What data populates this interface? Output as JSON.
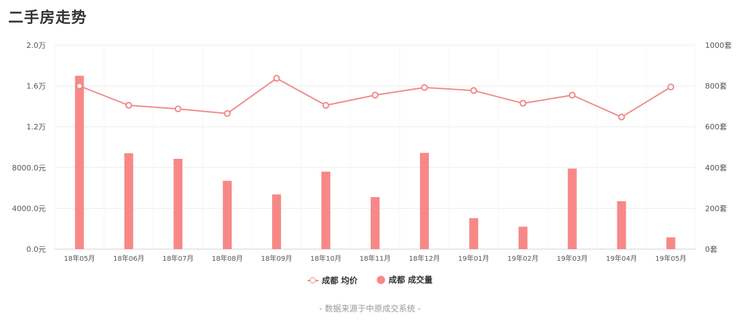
{
  "page": {
    "title": "二手房走势",
    "source": "- 数据来源于中原成交系统 -"
  },
  "legend": {
    "line_label": "成都 均价",
    "bar_label": "成都 成交量"
  },
  "colors": {
    "line": "#f08a8a",
    "bar": "#f88888",
    "grid": "#ececec"
  },
  "chart_data": {
    "type": "bar+line",
    "categories": [
      "18年05月",
      "18年06月",
      "18年07月",
      "18年08月",
      "18年09月",
      "18年10月",
      "18年11月",
      "18年12月",
      "19年01月",
      "19年02月",
      "19年03月",
      "19年04月",
      "19年05月"
    ],
    "left_axis": {
      "ticks": [
        "0.0元",
        "4000.0元",
        "8000.0元",
        "1.2万",
        "1.6万",
        "2.0万"
      ],
      "range": [
        0,
        20000
      ]
    },
    "right_axis": {
      "ticks": [
        "0套",
        "200套",
        "400套",
        "600套",
        "800套",
        "1000套"
      ],
      "range": [
        0,
        1000
      ]
    },
    "series": [
      {
        "name": "成都 均价",
        "type": "line",
        "axis": "left",
        "values": [
          16000,
          14100,
          13750,
          13300,
          16750,
          14100,
          15100,
          15850,
          15550,
          14300,
          15100,
          12950,
          15900
        ]
      },
      {
        "name": "成都 成交量",
        "type": "bar",
        "axis": "right",
        "values": [
          850,
          470,
          443,
          335,
          268,
          380,
          255,
          472,
          152,
          110,
          395,
          235,
          58
        ]
      }
    ],
    "grid": true,
    "legend_position": "bottom"
  }
}
